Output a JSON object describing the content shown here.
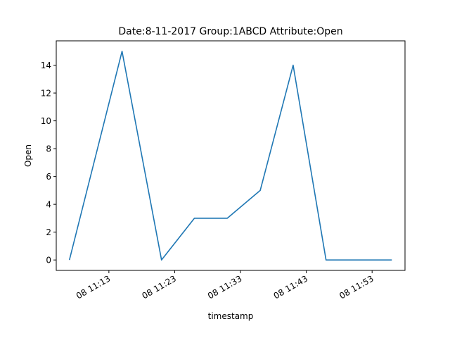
{
  "chart_data": {
    "type": "line",
    "title": "Date:8-11-2017  Group:1ABCD Attribute:Open",
    "xlabel": "timestamp",
    "ylabel": "Open",
    "x": [
      "2017-08-08 11:07",
      "2017-08-08 11:15",
      "2017-08-08 11:21",
      "2017-08-08 11:26",
      "2017-08-08 11:31",
      "2017-08-08 11:36",
      "2017-08-08 11:41",
      "2017-08-08 11:46",
      "2017-08-08 11:51",
      "2017-08-08 11:56"
    ],
    "series": [
      {
        "values": [
          0,
          15,
          0,
          3,
          3,
          5,
          14,
          0,
          0,
          0
        ],
        "color": "#1f77b4"
      }
    ],
    "x_ticks": [
      {
        "value": "2017-08-08 11:13",
        "label": "08 11:13"
      },
      {
        "value": "2017-08-08 11:23",
        "label": "08 11:23"
      },
      {
        "value": "2017-08-08 11:33",
        "label": "08 11:33"
      },
      {
        "value": "2017-08-08 11:43",
        "label": "08 11:43"
      },
      {
        "value": "2017-08-08 11:53",
        "label": "08 11:53"
      }
    ],
    "y_ticks": [
      0,
      2,
      4,
      6,
      8,
      10,
      12,
      14
    ],
    "xlim": [
      "2017-08-08 11:05",
      "2017-08-08 11:58"
    ],
    "ylim": [
      -0.75,
      15.75
    ],
    "grid": false,
    "legend": "none"
  }
}
